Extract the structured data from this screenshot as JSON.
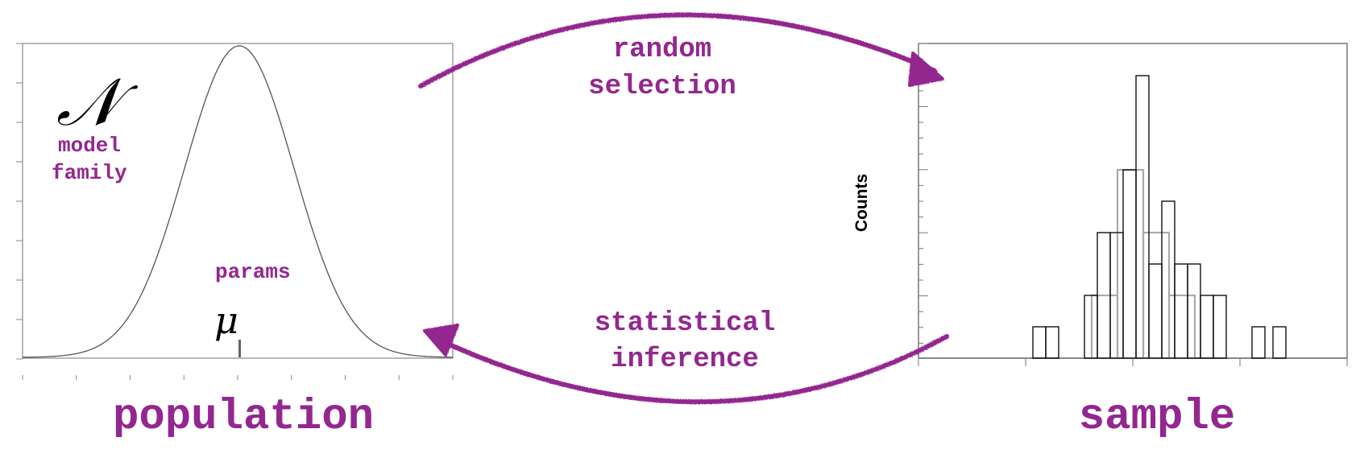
{
  "population": {
    "label": "population",
    "model_symbol": "𝒩",
    "model_label_line1": "model",
    "model_label_line2": "family",
    "params_label": "params",
    "mu_symbol": "μ"
  },
  "sample": {
    "label": "sample",
    "ylabel": "Counts"
  },
  "arrows": {
    "top_line1": "random",
    "top_line2": "selection",
    "bottom_line1": "statistical",
    "bottom_line2": "inference"
  },
  "colors": {
    "accent": "#93278f",
    "axis": "#888888",
    "curve": "#555555"
  },
  "histogram_counts": [
    1,
    1,
    0,
    0,
    2,
    4,
    4,
    6,
    9,
    3,
    5,
    3,
    3,
    2,
    2,
    0,
    0,
    1
  ],
  "histogram_grey_counts": [
    2,
    6,
    4,
    2
  ]
}
